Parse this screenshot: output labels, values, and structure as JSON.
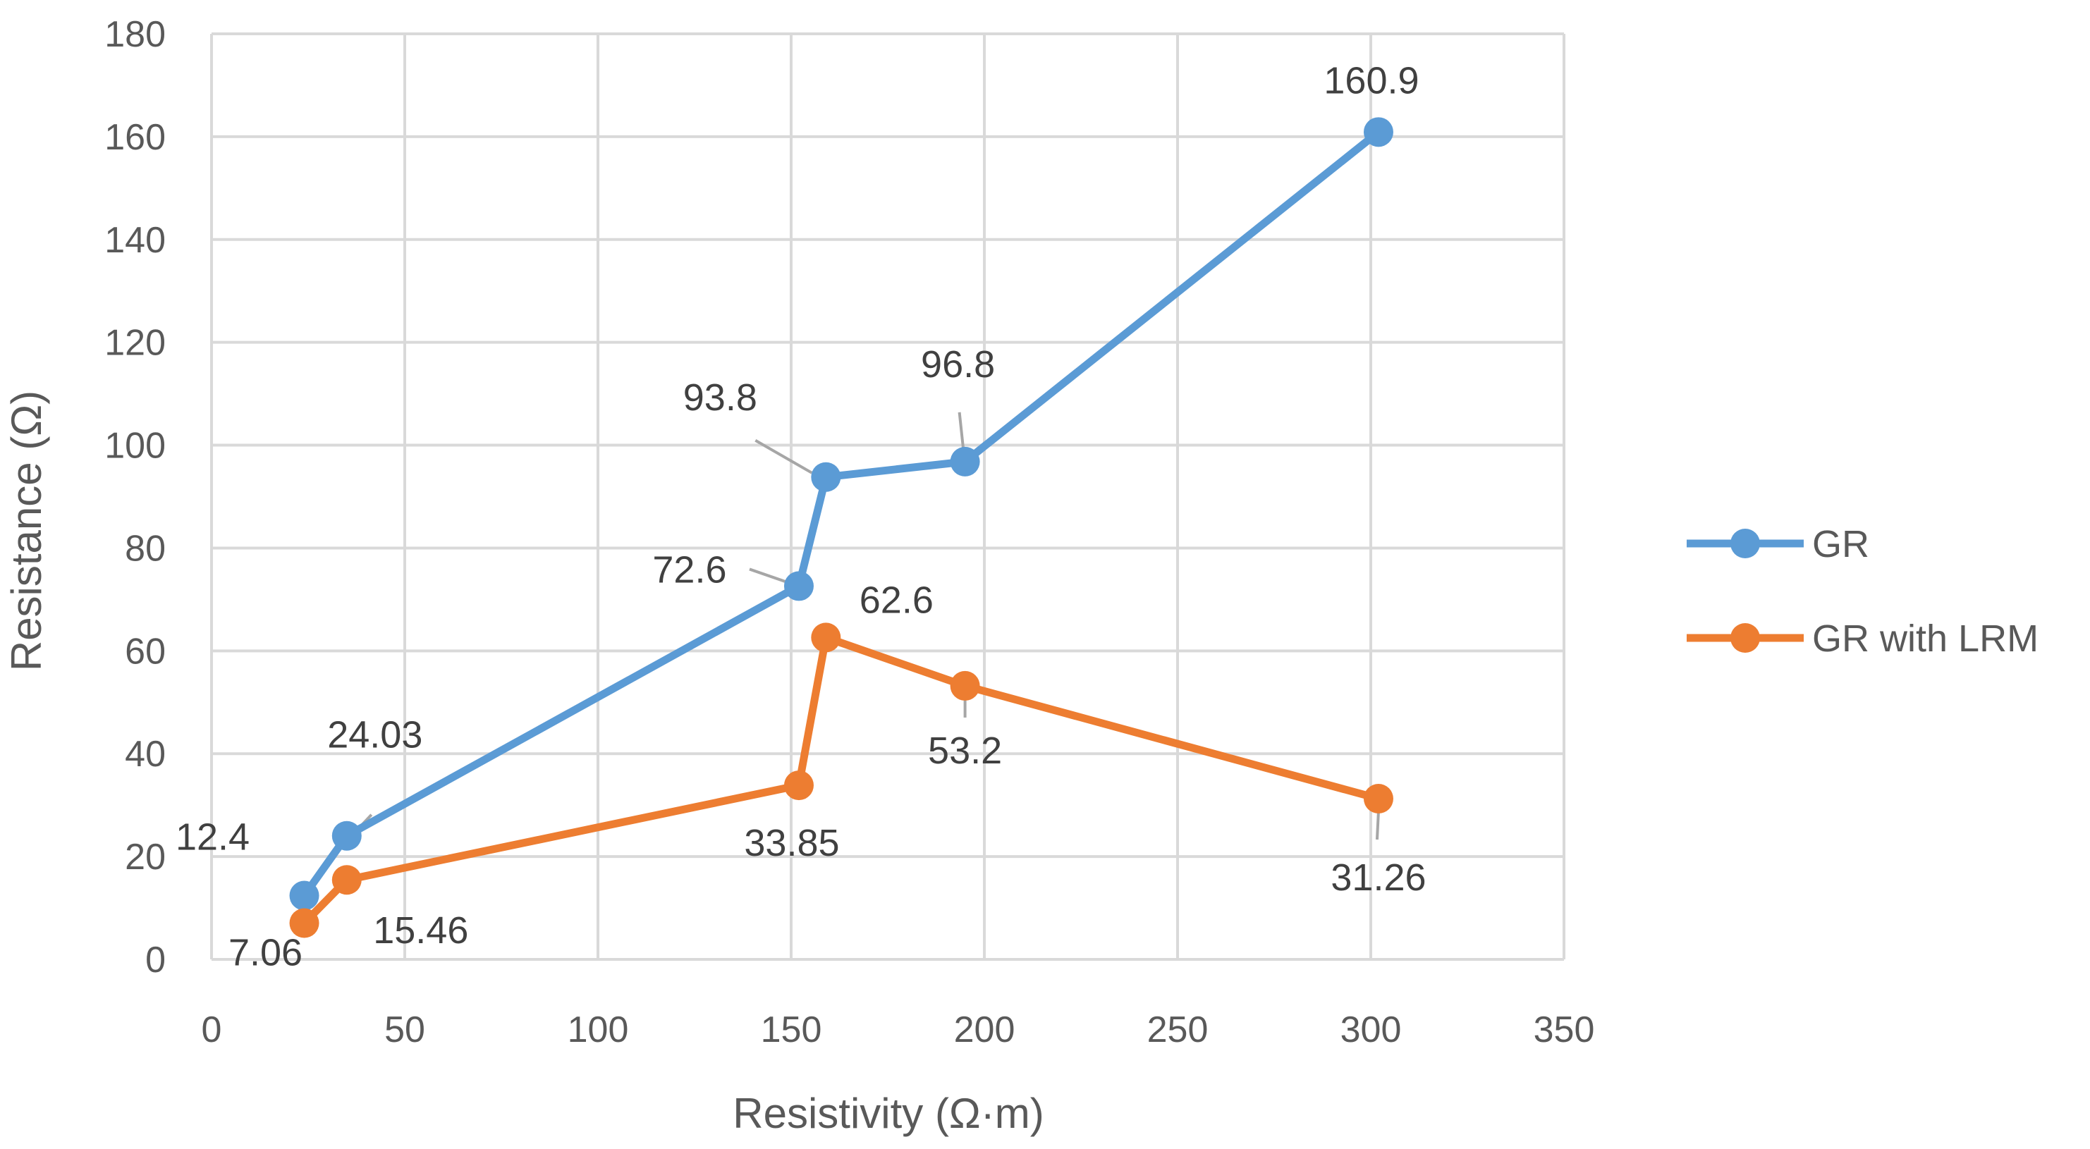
{
  "chart_data": {
    "type": "line",
    "title": "",
    "xlabel": "Resistivity (Ω·m)",
    "ylabel": "Resistance (Ω)",
    "xlim": [
      0,
      350
    ],
    "ylim": [
      0,
      180
    ],
    "xticks": [
      0,
      50,
      100,
      150,
      200,
      250,
      300,
      350
    ],
    "yticks": [
      0,
      20,
      40,
      60,
      80,
      100,
      120,
      140,
      160,
      180
    ],
    "grid": true,
    "legend_position": "right",
    "series": [
      {
        "name": "GR",
        "color": "#5B9BD5",
        "x": [
          24,
          35,
          152,
          159,
          195,
          302
        ],
        "y": [
          12.4,
          24.03,
          72.6,
          93.8,
          96.8,
          160.9
        ],
        "labels": [
          "12.4",
          "24.03",
          "72.6",
          "93.8",
          "96.8",
          "160.9"
        ]
      },
      {
        "name": "GR with LRM",
        "color": "#ED7D31",
        "x": [
          24,
          35,
          152,
          159,
          195,
          302
        ],
        "y": [
          7.06,
          15.46,
          33.85,
          62.6,
          53.2,
          31.26
        ],
        "labels": [
          "7.06",
          "15.46",
          "33.85",
          "62.6",
          "53.2",
          "31.26"
        ]
      }
    ]
  }
}
